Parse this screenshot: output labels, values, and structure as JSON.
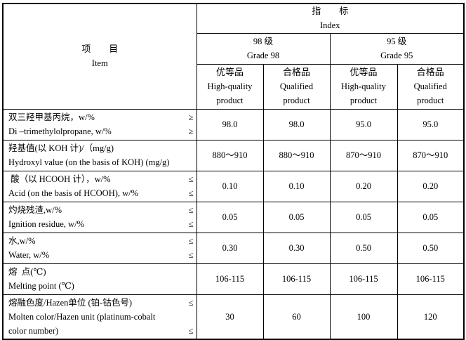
{
  "header": {
    "item_cn": "项　　目",
    "item_en": "Item",
    "index_cn": "指　　标",
    "index_en": "Index",
    "grades": [
      {
        "cn": "98 级",
        "en": "Grade 98"
      },
      {
        "cn": "95 级",
        "en": "Grade 95"
      }
    ],
    "levels": [
      {
        "cn": "优等品",
        "en1": "High-quality",
        "en2": "product"
      },
      {
        "cn": "合格品",
        "en1": "Qualified",
        "en2": "product"
      },
      {
        "cn": "优等品",
        "en1": "High-quality",
        "en2": "product"
      },
      {
        "cn": "合格品",
        "en1": "Qualified",
        "en2": "product"
      }
    ]
  },
  "rows": [
    {
      "lines": [
        {
          "t": "双三羟甲基丙烷，w/%",
          "s": "≥"
        },
        {
          "t": "Di –trimethylolpropane, w/%",
          "s": "≥"
        }
      ],
      "values": [
        "98.0",
        "98.0",
        "95.0",
        "95.0"
      ]
    },
    {
      "lines": [
        {
          "t": "羟基值(以 KOH 计)/（mg/g)",
          "s": ""
        },
        {
          "t": "Hydroxyl value (on the basis of KOH) (mg/g)",
          "s": ""
        }
      ],
      "values": [
        "880～910",
        "880～910",
        "870～910",
        "870～910"
      ]
    },
    {
      "lines": [
        {
          "t": " 酸（以 HCOOH 计），w/%",
          "s": "≤"
        },
        {
          "t": "Acid (on the basis of HCOOH), w/%",
          "s": "≤"
        }
      ],
      "values": [
        "0.10",
        "0.10",
        "0.20",
        "0.20"
      ]
    },
    {
      "lines": [
        {
          "t": "灼烧残渣,w/%",
          "s": "≤"
        },
        {
          "t": "Ignition residue, w/%",
          "s": "≤"
        }
      ],
      "values": [
        "0.05",
        "0.05",
        "0.05",
        "0.05"
      ]
    },
    {
      "lines": [
        {
          "t": "水,w/%",
          "s": "≤"
        },
        {
          "t": "Water, w/%",
          "s": "≤"
        }
      ],
      "values": [
        "0.30",
        "0.30",
        "0.50",
        "0.50"
      ]
    },
    {
      "lines": [
        {
          "t": "熔  点(℃)",
          "s": ""
        },
        {
          "t": "Melting point (℃)",
          "s": ""
        }
      ],
      "values": [
        "106-115",
        "106-115",
        "106-115",
        "106-115"
      ]
    },
    {
      "lines": [
        {
          "t": "熔融色度/Hazen单位 (铂-钴色号)",
          "s": "≤"
        },
        {
          "t": "Molten color/Hazen unit (platinum-cobalt",
          "s": ""
        },
        {
          "t": "color number)",
          "s": "≤"
        }
      ],
      "values": [
        "30",
        "60",
        "100",
        "120"
      ]
    }
  ]
}
